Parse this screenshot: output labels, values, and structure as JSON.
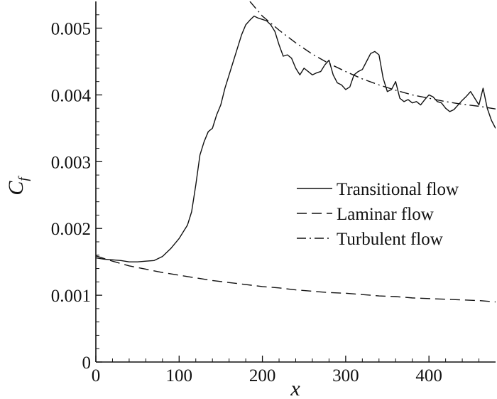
{
  "chart_data": {
    "type": "line",
    "title": "",
    "xlabel": "x",
    "ylabel": {
      "main": "C",
      "sub": "f"
    },
    "xlim": [
      0,
      480
    ],
    "ylim": [
      0,
      0.0054
    ],
    "xticks": [
      0,
      100,
      200,
      300,
      400
    ],
    "xtick_labels": [
      "0",
      "100",
      "200",
      "300",
      "400"
    ],
    "yticks": [
      0,
      0.001,
      0.002,
      0.003,
      0.004,
      0.005
    ],
    "ytick_labels": [
      "0",
      "0.001",
      "0.002",
      "0.003",
      "0.004",
      "0.005"
    ],
    "grid": false,
    "legend_position": "right",
    "series": [
      {
        "name": "Transitional flow",
        "style": "solid",
        "color": "#111111",
        "x": [
          0,
          10,
          20,
          30,
          40,
          50,
          60,
          70,
          80,
          90,
          100,
          110,
          115,
          120,
          125,
          130,
          135,
          140,
          145,
          150,
          155,
          160,
          165,
          170,
          175,
          180,
          185,
          190,
          195,
          200,
          205,
          210,
          215,
          220,
          225,
          230,
          235,
          240,
          245,
          250,
          255,
          260,
          265,
          270,
          275,
          280,
          285,
          290,
          295,
          300,
          305,
          310,
          315,
          320,
          325,
          330,
          335,
          340,
          345,
          350,
          355,
          360,
          365,
          370,
          375,
          380,
          385,
          390,
          395,
          400,
          405,
          410,
          415,
          420,
          425,
          430,
          435,
          440,
          445,
          450,
          455,
          460,
          465,
          470,
          475,
          480
        ],
        "y": [
          0.00156,
          0.00154,
          0.00153,
          0.00152,
          0.0015,
          0.0015,
          0.00151,
          0.00152,
          0.00158,
          0.0017,
          0.00185,
          0.00205,
          0.00225,
          0.00265,
          0.0031,
          0.0033,
          0.00345,
          0.0035,
          0.0037,
          0.00385,
          0.0041,
          0.0043,
          0.0045,
          0.0047,
          0.0049,
          0.00505,
          0.00512,
          0.00518,
          0.00515,
          0.00513,
          0.00511,
          0.00505,
          0.00495,
          0.00475,
          0.00458,
          0.0046,
          0.00455,
          0.0044,
          0.0043,
          0.0044,
          0.00435,
          0.0043,
          0.00433,
          0.00435,
          0.00445,
          0.00452,
          0.0043,
          0.00418,
          0.00415,
          0.00408,
          0.00412,
          0.0043,
          0.00435,
          0.00438,
          0.0045,
          0.00462,
          0.00465,
          0.0046,
          0.00425,
          0.00405,
          0.00408,
          0.0042,
          0.00395,
          0.0039,
          0.00393,
          0.00388,
          0.0039,
          0.00385,
          0.00393,
          0.004,
          0.00397,
          0.0039,
          0.00388,
          0.0038,
          0.00375,
          0.00378,
          0.00385,
          0.00392,
          0.00398,
          0.00405,
          0.00395,
          0.00385,
          0.0041,
          0.0038,
          0.00362,
          0.0035
        ]
      },
      {
        "name": "Laminar flow",
        "style": "dashed",
        "color": "#111111",
        "x": [
          0,
          20,
          40,
          60,
          80,
          100,
          120,
          140,
          160,
          180,
          200,
          220,
          240,
          260,
          280,
          300,
          320,
          340,
          360,
          380,
          400,
          420,
          440,
          460,
          480
        ],
        "y": [
          0.00159,
          0.00151,
          0.00144,
          0.00139,
          0.00134,
          0.0013,
          0.00126,
          0.00122,
          0.00119,
          0.00116,
          0.00113,
          0.00111,
          0.00108,
          0.00106,
          0.00104,
          0.00103,
          0.00101,
          0.00099,
          0.00098,
          0.00096,
          0.00095,
          0.00094,
          0.00093,
          0.00092,
          0.0009
        ]
      },
      {
        "name": "Turbulent flow",
        "style": "dashdot",
        "color": "#111111",
        "x": [
          185,
          200,
          220,
          240,
          260,
          280,
          300,
          320,
          340,
          360,
          380,
          400,
          420,
          440,
          460,
          480
        ],
        "y": [
          0.0054,
          0.00518,
          0.00497,
          0.00478,
          0.00461,
          0.00447,
          0.00435,
          0.00424,
          0.00415,
          0.00407,
          0.004,
          0.00395,
          0.0039,
          0.00386,
          0.00383,
          0.00379
        ]
      }
    ]
  }
}
